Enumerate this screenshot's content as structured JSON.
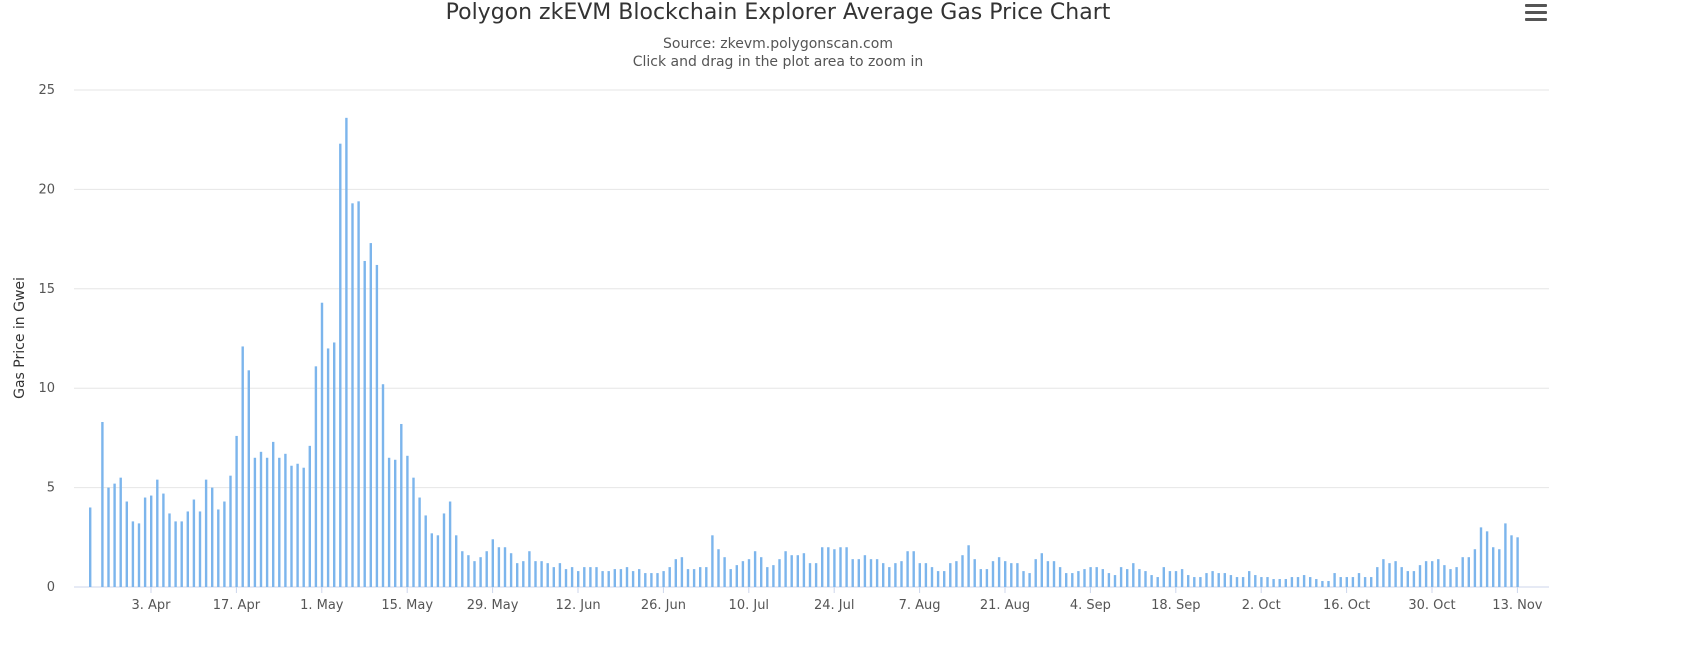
{
  "chart_data": {
    "type": "bar",
    "title": "Polygon zkEVM Blockchain Explorer Average Gas Price Chart",
    "subtitle_source": "Source: zkevm.polygonscan.com",
    "subtitle_hint": "Click and drag in the plot area to zoom in",
    "ylabel": "Gas Price in Gwei",
    "xlabel": "",
    "ylim": [
      0,
      25
    ],
    "y_ticks": [
      "0",
      "5",
      "10",
      "15",
      "20",
      "25"
    ],
    "grid": true,
    "bar_color": "#7cb5ec",
    "x_start": "2023-03-24",
    "x_ticks": [
      {
        "label": "3. Apr",
        "date": "2023-04-03"
      },
      {
        "label": "17. Apr",
        "date": "2023-04-17"
      },
      {
        "label": "1. May",
        "date": "2023-05-01"
      },
      {
        "label": "15. May",
        "date": "2023-05-15"
      },
      {
        "label": "29. May",
        "date": "2023-05-29"
      },
      {
        "label": "12. Jun",
        "date": "2023-06-12"
      },
      {
        "label": "26. Jun",
        "date": "2023-06-26"
      },
      {
        "label": "10. Jul",
        "date": "2023-07-10"
      },
      {
        "label": "24. Jul",
        "date": "2023-07-24"
      },
      {
        "label": "7. Aug",
        "date": "2023-08-07"
      },
      {
        "label": "21. Aug",
        "date": "2023-08-21"
      },
      {
        "label": "4. Sep",
        "date": "2023-09-04"
      },
      {
        "label": "18. Sep",
        "date": "2023-09-18"
      },
      {
        "label": "2. Oct",
        "date": "2023-10-02"
      },
      {
        "label": "16. Oct",
        "date": "2023-10-16"
      },
      {
        "label": "30. Oct",
        "date": "2023-10-30"
      },
      {
        "label": "13. Nov",
        "date": "2023-11-13"
      }
    ],
    "values": [
      4.0,
      0,
      8.3,
      5.0,
      5.2,
      5.5,
      4.3,
      3.3,
      3.2,
      4.5,
      4.6,
      5.4,
      4.7,
      3.7,
      3.3,
      3.3,
      3.8,
      4.4,
      3.8,
      5.4,
      5.0,
      3.9,
      4.3,
      5.6,
      7.6,
      12.1,
      10.9,
      6.5,
      6.8,
      6.5,
      7.3,
      6.5,
      6.7,
      6.1,
      6.2,
      6.0,
      7.1,
      11.1,
      14.3,
      12.0,
      12.3,
      22.3,
      23.6,
      19.3,
      19.4,
      16.4,
      17.3,
      16.2,
      10.2,
      6.5,
      6.4,
      8.2,
      6.6,
      5.5,
      4.5,
      3.6,
      2.7,
      2.6,
      3.7,
      4.3,
      2.6,
      1.8,
      1.6,
      1.3,
      1.5,
      1.8,
      2.4,
      2.0,
      2.0,
      1.7,
      1.2,
      1.3,
      1.8,
      1.3,
      1.3,
      1.2,
      1.0,
      1.2,
      0.9,
      1.0,
      0.8,
      1.0,
      1.0,
      1.0,
      0.8,
      0.8,
      0.9,
      0.9,
      1.0,
      0.8,
      0.9,
      0.7,
      0.7,
      0.7,
      0.8,
      1.0,
      1.4,
      1.5,
      0.9,
      0.9,
      1.0,
      1.0,
      2.6,
      1.9,
      1.5,
      0.9,
      1.1,
      1.3,
      1.4,
      1.8,
      1.5,
      1.0,
      1.1,
      1.4,
      1.8,
      1.6,
      1.6,
      1.7,
      1.2,
      1.2,
      2.0,
      2.0,
      1.9,
      2.0,
      2.0,
      1.4,
      1.4,
      1.6,
      1.4,
      1.4,
      1.2,
      1.0,
      1.2,
      1.3,
      1.8,
      1.8,
      1.2,
      1.2,
      1.0,
      0.8,
      0.8,
      1.2,
      1.3,
      1.6,
      2.1,
      1.4,
      0.9,
      0.9,
      1.3,
      1.5,
      1.3,
      1.2,
      1.2,
      0.8,
      0.7,
      1.4,
      1.7,
      1.3,
      1.3,
      1.0,
      0.7,
      0.7,
      0.8,
      0.9,
      1.0,
      1.0,
      0.9,
      0.7,
      0.6,
      1.0,
      0.9,
      1.2,
      0.9,
      0.8,
      0.6,
      0.5,
      1.0,
      0.8,
      0.8,
      0.9,
      0.6,
      0.5,
      0.5,
      0.7,
      0.8,
      0.7,
      0.7,
      0.6,
      0.5,
      0.5,
      0.8,
      0.6,
      0.5,
      0.5,
      0.4,
      0.4,
      0.4,
      0.5,
      0.5,
      0.6,
      0.5,
      0.4,
      0.3,
      0.3,
      0.7,
      0.5,
      0.5,
      0.5,
      0.7,
      0.5,
      0.5,
      1.0,
      1.4,
      1.2,
      1.3,
      1.0,
      0.8,
      0.8,
      1.1,
      1.3,
      1.3,
      1.4,
      1.1,
      0.9,
      1.0,
      1.5,
      1.5,
      1.9,
      3.0,
      2.8,
      2.0,
      1.9,
      3.2,
      2.6,
      2.5
    ]
  }
}
